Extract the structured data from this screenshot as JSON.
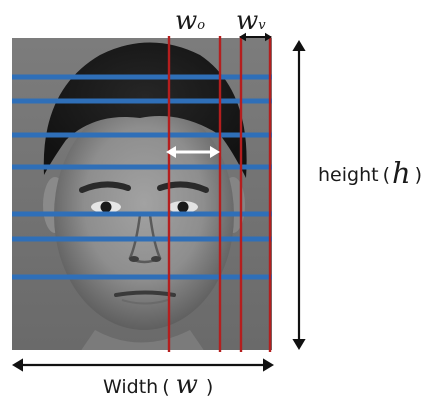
{
  "figure": {
    "image": {
      "kind": "grayscale frontal face photograph"
    },
    "horizontal_stripe_count": 7,
    "vertical_stripe_count": 3,
    "colors": {
      "horizontal_stripes": "#2f6fb8",
      "vertical_stripes": "#b41e1e",
      "small_arrow": "#ffffff",
      "dimension_arrows": "#111111"
    },
    "labels": {
      "w_o": {
        "symbol": "w",
        "subscript": "o"
      },
      "w_v": {
        "symbol": "w",
        "subscript": "v"
      },
      "height": {
        "text": "height",
        "open": "(",
        "symbol": "h",
        "close": ")"
      },
      "width": {
        "text": "Width",
        "open": "(",
        "symbol": "w",
        "close": ")"
      }
    }
  }
}
